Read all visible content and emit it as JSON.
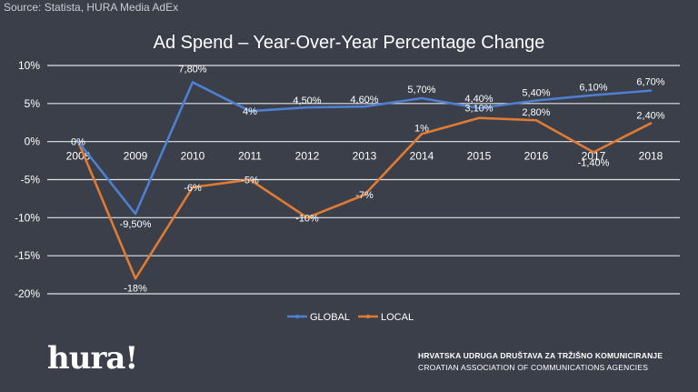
{
  "source": "Source: Statista, HURA Media AdEx",
  "footer": {
    "logo": "hura!",
    "association_hr": "HRVATSKA UDRUGA DRUŠTAVA ZA TRŽIŠNO KOMUNICIRANJE",
    "association_en": "CROATIAN ASSOCIATION OF COMMUNICATIONS AGENCIES"
  },
  "colors": {
    "background": "#3a3f49",
    "grid": "#e2e4e7",
    "global": "#4f7fcf",
    "local": "#e07b35",
    "text": "#ffffff"
  },
  "chart_data": {
    "type": "line",
    "title": "Ad Spend – Year-Over-Year Percentage Change",
    "categories": [
      "2008",
      "2009",
      "2010",
      "2011",
      "2012",
      "2013",
      "2014",
      "2015",
      "2016",
      "2017",
      "2018"
    ],
    "ylim": [
      -20,
      10
    ],
    "yticks": [
      10,
      5,
      0,
      -5,
      -10,
      -15,
      -20
    ],
    "ytick_labels": [
      "10%",
      "5%",
      "0%",
      "-5%",
      "-10%",
      "-15%",
      "-20%"
    ],
    "legend_position": "bottom",
    "series": [
      {
        "name": "GLOBAL",
        "values": [
          0,
          -9.5,
          7.8,
          4,
          4.5,
          4.6,
          5.7,
          4.4,
          5.4,
          6.1,
          6.7
        ],
        "labels": [
          "0%",
          "-9,50%",
          "7,80%",
          "4%",
          "4,50%",
          "4,60%",
          "5,70%",
          "4,40%",
          "5,40%",
          "6,10%",
          "6,70%"
        ]
      },
      {
        "name": "LOCAL",
        "values": [
          0,
          -18,
          -6,
          -5,
          -10,
          -7,
          1,
          3.1,
          2.8,
          -1.4,
          2.4
        ],
        "labels": [
          "0%",
          "-18%",
          "-6%",
          "-5%",
          "-10%",
          "-7%",
          "1%",
          "3,10%",
          "2,80%",
          "-1,40%",
          "2,40%"
        ]
      }
    ]
  }
}
